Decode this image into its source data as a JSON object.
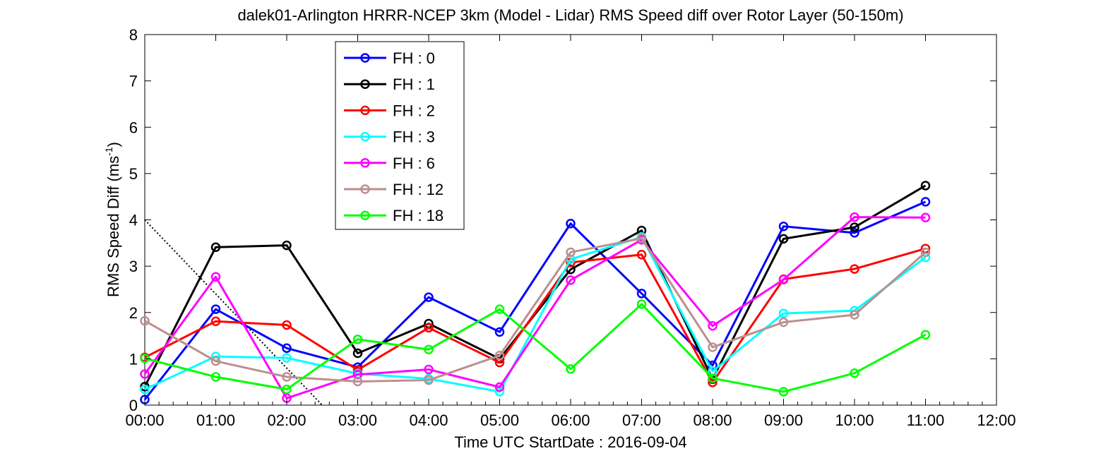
{
  "chart_data": {
    "type": "line",
    "title": "dalek01-Arlington HRRR-NCEP 3km (Model - Lidar) RMS Speed diff over Rotor Layer (50-150m)",
    "xlabel": "Time UTC    StartDate : 2016-09-04",
    "ylabel_main": "RMS Speed Diff (ms",
    "ylabel_sup": "-1",
    "ylabel_close": ")",
    "xlim": [
      0,
      12
    ],
    "ylim": [
      0,
      8
    ],
    "x_ticks": [
      0,
      1,
      2,
      3,
      4,
      5,
      6,
      7,
      8,
      9,
      10,
      11,
      12
    ],
    "x_tick_labels": [
      "00:00",
      "01:00",
      "02:00",
      "03:00",
      "04:00",
      "05:00",
      "06:00",
      "07:00",
      "08:00",
      "09:00",
      "10:00",
      "11:00",
      "12:00"
    ],
    "y_ticks": [
      0,
      1,
      2,
      3,
      4,
      5,
      6,
      7,
      8
    ],
    "y_tick_labels": [
      "0",
      "1",
      "2",
      "3",
      "4",
      "5",
      "6",
      "7",
      "8"
    ],
    "grid": false,
    "legend_position": "top-left",
    "x": [
      0,
      1,
      2,
      3,
      4,
      5,
      6,
      7,
      8,
      9,
      10,
      11
    ],
    "series": [
      {
        "name": "FH : 0",
        "color": "#0000ff",
        "values": [
          0.12,
          2.07,
          1.23,
          0.82,
          2.33,
          1.58,
          3.92,
          2.41,
          0.86,
          3.86,
          3.72,
          4.39
        ]
      },
      {
        "name": "FH : 1",
        "color": "#000000",
        "values": [
          0.4,
          3.41,
          3.45,
          1.12,
          1.76,
          1.0,
          2.93,
          3.77,
          0.56,
          3.59,
          3.84,
          4.74
        ]
      },
      {
        "name": "FH : 2",
        "color": "#ff0000",
        "values": [
          1.03,
          1.81,
          1.73,
          0.76,
          1.67,
          0.92,
          3.08,
          3.25,
          0.49,
          2.72,
          2.94,
          3.38
        ]
      },
      {
        "name": "FH : 3",
        "color": "#00ffff",
        "values": [
          0.34,
          1.05,
          1.02,
          0.68,
          0.57,
          0.29,
          3.15,
          3.63,
          0.73,
          1.98,
          2.04,
          3.19
        ]
      },
      {
        "name": "FH : 6",
        "color": "#ff00ff",
        "values": [
          0.67,
          2.77,
          0.15,
          0.66,
          0.77,
          0.39,
          2.7,
          3.57,
          1.71,
          2.71,
          4.06,
          4.05
        ]
      },
      {
        "name": "FH : 12",
        "color": "#bc8f8f",
        "values": [
          1.82,
          0.95,
          0.61,
          0.51,
          0.54,
          1.07,
          3.3,
          3.6,
          1.25,
          1.79,
          1.95,
          3.3
        ]
      },
      {
        "name": "FH : 18",
        "color": "#00ff00",
        "values": [
          1.01,
          0.61,
          0.34,
          1.42,
          1.2,
          2.07,
          0.78,
          2.18,
          0.58,
          0.29,
          0.69,
          1.52
        ]
      }
    ],
    "reference_line": {
      "style": "dotted",
      "color": "#000000",
      "x": [
        0.0,
        2.5
      ],
      "y": [
        4.0,
        0.0
      ]
    }
  }
}
